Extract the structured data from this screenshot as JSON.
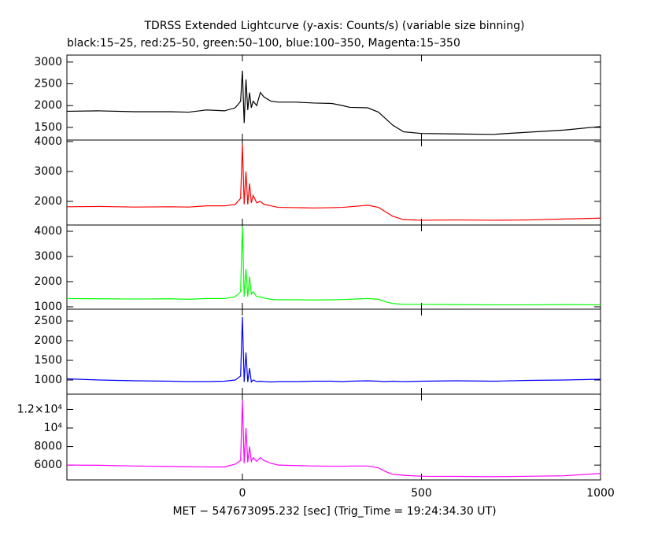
{
  "title": "TDRSS Extended Lightcurve (y-axis: Counts/s) (variable size binning)",
  "subtitle": "black:15–25, red:25–50, green:50–100, blue:100–350, Magenta:15–350",
  "x_label": "MET − 547673095.232 [sec] (Trig_Time = 19:24:34.30 UT)",
  "chart_data": [
    {
      "type": "line",
      "color": "#000000",
      "xlim": [
        -490,
        1000
      ],
      "xticks": [
        0,
        500,
        1000
      ],
      "ylim": [
        1210,
        3160
      ],
      "yticks": [
        1500,
        2000,
        2500,
        3000
      ],
      "x": [
        -490,
        -400,
        -300,
        -200,
        -150,
        -100,
        -50,
        -20,
        -5,
        0,
        5,
        10,
        15,
        20,
        25,
        30,
        40,
        50,
        60,
        80,
        100,
        150,
        200,
        250,
        280,
        300,
        350,
        380,
        400,
        420,
        450,
        500,
        600,
        700,
        800,
        900,
        1000
      ],
      "values": [
        1870,
        1880,
        1860,
        1860,
        1850,
        1900,
        1880,
        1950,
        2100,
        2800,
        1600,
        2600,
        1900,
        2300,
        1950,
        2100,
        2000,
        2300,
        2200,
        2100,
        2080,
        2080,
        2060,
        2050,
        2000,
        1960,
        1950,
        1850,
        1700,
        1550,
        1400,
        1360,
        1350,
        1340,
        1390,
        1440,
        1520
      ]
    },
    {
      "type": "line",
      "color": "#ff0000",
      "xlim": [
        -490,
        1000
      ],
      "xticks": [
        0,
        500,
        1000
      ],
      "ylim": [
        1210,
        4050
      ],
      "yticks": [
        2000,
        3000,
        4000
      ],
      "x": [
        -490,
        -400,
        -300,
        -200,
        -150,
        -100,
        -50,
        -20,
        -5,
        0,
        5,
        10,
        15,
        20,
        25,
        30,
        40,
        50,
        60,
        80,
        100,
        150,
        200,
        250,
        280,
        300,
        350,
        380,
        400,
        420,
        450,
        500,
        600,
        700,
        800,
        900,
        1000
      ],
      "values": [
        1820,
        1830,
        1810,
        1820,
        1810,
        1850,
        1850,
        1900,
        2100,
        3900,
        1900,
        3000,
        1900,
        2600,
        1950,
        2200,
        1950,
        2000,
        1900,
        1850,
        1800,
        1790,
        1780,
        1790,
        1800,
        1820,
        1870,
        1800,
        1650,
        1500,
        1390,
        1370,
        1380,
        1370,
        1380,
        1410,
        1440
      ]
    },
    {
      "type": "line",
      "color": "#00ff00",
      "xlim": [
        -490,
        1000
      ],
      "xticks": [
        0,
        500,
        1000
      ],
      "ylim": [
        906,
        4250
      ],
      "yticks": [
        1000,
        2000,
        3000,
        4000
      ],
      "x": [
        -490,
        -400,
        -300,
        -200,
        -150,
        -100,
        -50,
        -20,
        -5,
        0,
        5,
        10,
        15,
        20,
        25,
        30,
        40,
        50,
        60,
        80,
        100,
        150,
        200,
        250,
        280,
        300,
        350,
        380,
        400,
        420,
        450,
        500,
        600,
        700,
        800,
        900,
        1000
      ],
      "values": [
        1330,
        1320,
        1310,
        1320,
        1300,
        1330,
        1330,
        1400,
        1600,
        4200,
        1400,
        2500,
        1400,
        2200,
        1500,
        1600,
        1400,
        1400,
        1350,
        1300,
        1280,
        1280,
        1270,
        1280,
        1290,
        1300,
        1330,
        1300,
        1200,
        1130,
        1100,
        1100,
        1090,
        1080,
        1080,
        1090,
        1080
      ]
    },
    {
      "type": "line",
      "color": "#0000ff",
      "xlim": [
        -490,
        1000
      ],
      "xticks": [
        0,
        500,
        1000
      ],
      "ylim": [
        640,
        2800
      ],
      "yticks": [
        1000,
        1500,
        2000,
        2500
      ],
      "x": [
        -490,
        -400,
        -300,
        -200,
        -150,
        -100,
        -50,
        -20,
        -5,
        0,
        5,
        10,
        15,
        20,
        25,
        30,
        40,
        50,
        60,
        80,
        100,
        150,
        200,
        250,
        280,
        300,
        350,
        380,
        400,
        420,
        450,
        500,
        600,
        700,
        800,
        900,
        1000
      ],
      "values": [
        1030,
        1000,
        980,
        970,
        960,
        960,
        970,
        1000,
        1100,
        2600,
        950,
        1700,
        950,
        1300,
        950,
        1000,
        960,
        970,
        960,
        950,
        960,
        960,
        970,
        970,
        960,
        970,
        980,
        970,
        960,
        970,
        960,
        970,
        980,
        970,
        990,
        1000,
        1020
      ]
    },
    {
      "type": "line",
      "color": "#ff00ff",
      "xlim": [
        -490,
        1000
      ],
      "xticks": [
        0,
        500,
        1000
      ],
      "ylim": [
        4400,
        13650
      ],
      "yticks": [
        6000,
        8000,
        {
          "value": 10000,
          "label": "10⁴"
        },
        {
          "value": 12000,
          "label": "1.2×10⁴"
        }
      ],
      "x": [
        -490,
        -400,
        -300,
        -200,
        -150,
        -100,
        -50,
        -20,
        -5,
        0,
        5,
        10,
        15,
        20,
        25,
        30,
        40,
        50,
        60,
        80,
        100,
        150,
        200,
        250,
        280,
        300,
        350,
        380,
        400,
        420,
        450,
        500,
        600,
        700,
        800,
        900,
        1000
      ],
      "values": [
        6000,
        5980,
        5900,
        5850,
        5820,
        5800,
        5800,
        6100,
        6500,
        13000,
        6200,
        10000,
        6300,
        8000,
        6400,
        6800,
        6400,
        6800,
        6500,
        6200,
        6000,
        5950,
        5900,
        5880,
        5880,
        5900,
        5900,
        5700,
        5300,
        5000,
        4900,
        4800,
        4780,
        4750,
        4800,
        4850,
        5100
      ]
    }
  ]
}
